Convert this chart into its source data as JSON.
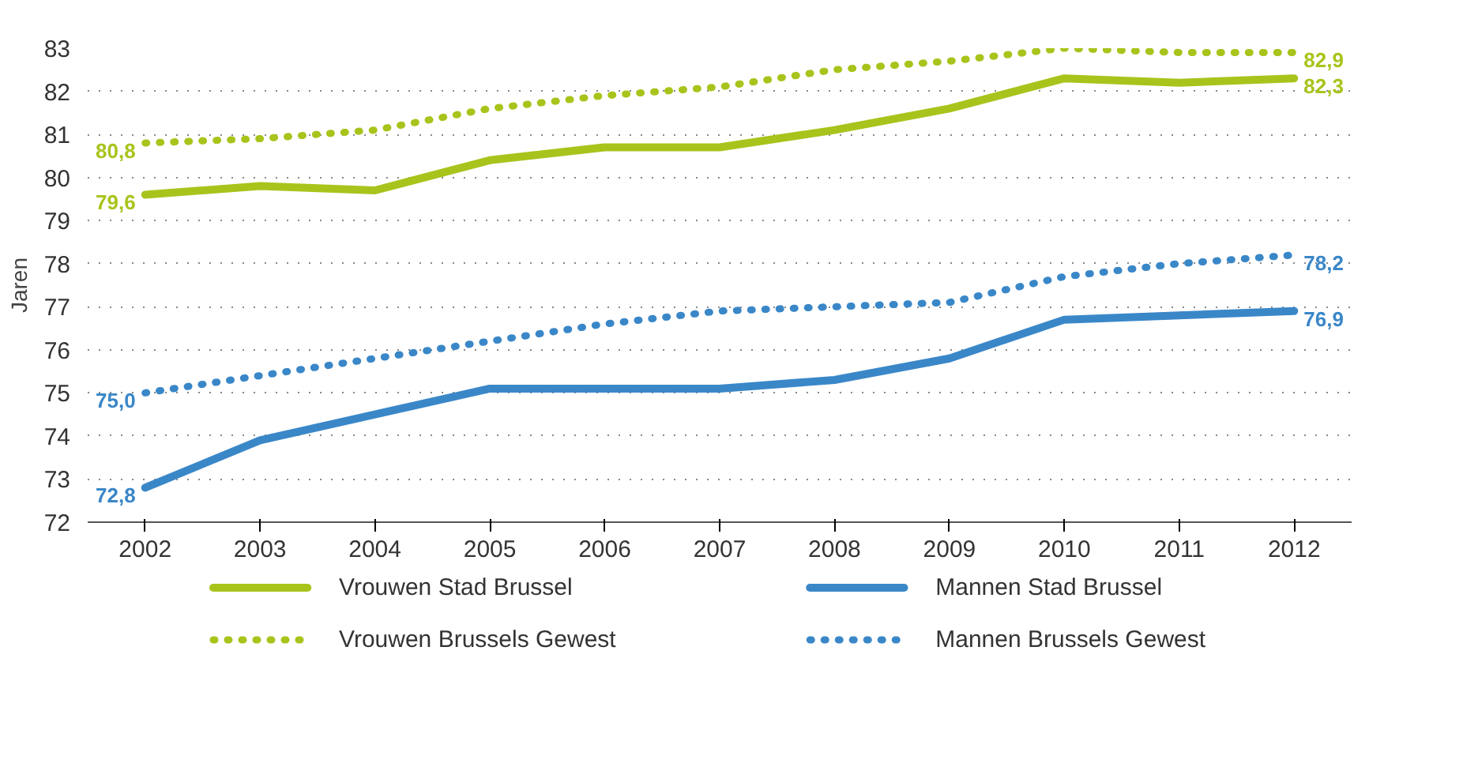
{
  "chart_data": {
    "type": "line",
    "ylabel": "Jaren",
    "categories": [
      "2002",
      "2003",
      "2004",
      "2005",
      "2006",
      "2007",
      "2008",
      "2009",
      "2010",
      "2011",
      "2012"
    ],
    "ylim": [
      72,
      83
    ],
    "yticks": [
      72,
      73,
      74,
      75,
      76,
      77,
      78,
      79,
      80,
      81,
      82,
      83
    ],
    "grid": "y",
    "legend": "bottom",
    "series": [
      {
        "name": "Vrouwen Stad Brussel",
        "color": "#a8c41c",
        "line_style": "solid",
        "values": [
          79.6,
          79.8,
          79.7,
          80.4,
          80.7,
          80.7,
          81.1,
          81.6,
          82.3,
          82.2,
          82.3
        ],
        "value_labels": [
          "79,6",
          null,
          null,
          null,
          null,
          null,
          null,
          null,
          null,
          null,
          "82,3"
        ]
      },
      {
        "name": "Mannen Stad Brussel",
        "color": "#3a87c8",
        "line_style": "solid",
        "values": [
          72.8,
          73.9,
          74.5,
          75.1,
          75.1,
          75.1,
          75.3,
          75.8,
          76.7,
          76.8,
          76.9
        ],
        "value_labels": [
          "72,8",
          null,
          null,
          null,
          null,
          null,
          null,
          null,
          null,
          null,
          "76,9"
        ]
      },
      {
        "name": "Vrouwen Brussels Gewest",
        "color": "#a8c41c",
        "line_style": "dotted",
        "values": [
          80.8,
          80.9,
          81.1,
          81.6,
          81.9,
          82.1,
          82.5,
          82.7,
          83.0,
          82.9,
          82.9
        ],
        "value_labels": [
          "80,8",
          null,
          null,
          null,
          null,
          null,
          null,
          null,
          null,
          null,
          "82,9"
        ]
      },
      {
        "name": "Mannen Brussels Gewest",
        "color": "#3a87c8",
        "line_style": "dotted",
        "values": [
          75.0,
          75.4,
          75.8,
          76.2,
          76.6,
          76.9,
          77.0,
          77.1,
          77.7,
          78.0,
          78.2
        ],
        "value_labels": [
          "75,0",
          null,
          null,
          null,
          null,
          null,
          null,
          null,
          null,
          null,
          "78,2"
        ]
      }
    ]
  }
}
